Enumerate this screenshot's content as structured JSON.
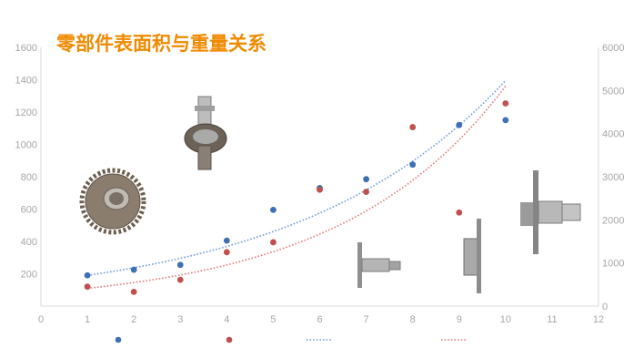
{
  "chart_data": {
    "type": "scatter",
    "title": "零部件表面积与重量关系",
    "x_ticks": [
      "0",
      "1",
      "2",
      "3",
      "4",
      "5",
      "6",
      "7",
      "8",
      "9",
      "10",
      "11",
      "12"
    ],
    "y_left_ticks": [
      "200",
      "400",
      "600",
      "800",
      "1000",
      "1200",
      "1400",
      "1600"
    ],
    "y_right_ticks": [
      "0",
      "1000",
      "2000",
      "3000",
      "4000",
      "5000",
      "6000"
    ],
    "xlim": [
      0,
      12
    ],
    "ylim_left": [
      0,
      1600
    ],
    "ylim_right": [
      0,
      6000
    ],
    "grid": false,
    "legend_position": "bottom",
    "series": [
      {
        "axis": "left",
        "color": "#3f6fb4",
        "marker": "circle",
        "points": [
          [
            1,
            190
          ],
          [
            2,
            225
          ],
          [
            3,
            255
          ],
          [
            4,
            405
          ],
          [
            5,
            595
          ],
          [
            6,
            730
          ],
          [
            7,
            785
          ],
          [
            8,
            875
          ],
          [
            9,
            1120
          ],
          [
            10,
            1150
          ]
        ]
      },
      {
        "axis": "right",
        "color": "#c0504d",
        "marker": "circle",
        "points": [
          [
            1,
            450
          ],
          [
            2,
            330
          ],
          [
            3,
            610
          ],
          [
            4,
            1250
          ],
          [
            5,
            1480
          ],
          [
            6,
            2700
          ],
          [
            7,
            2650
          ],
          [
            8,
            4150
          ],
          [
            9,
            2170
          ],
          [
            10,
            4700
          ]
        ]
      }
    ],
    "trendlines": [
      {
        "axis": "left",
        "type": "exponential",
        "color": "#6f9bd8",
        "start": [
          1,
          190
        ],
        "end": [
          10,
          1395
        ]
      },
      {
        "axis": "left",
        "type": "exponential",
        "color": "#e07b7b",
        "start": [
          1,
          110
        ],
        "end": [
          10,
          1360
        ]
      }
    ],
    "legend": [
      {
        "kind": "marker",
        "color": "#3f6fb4"
      },
      {
        "kind": "marker",
        "color": "#c0504d"
      },
      {
        "kind": "dotted-line",
        "color": "#6f9bd8"
      },
      {
        "kind": "dotted-line",
        "color": "#e07b7b"
      }
    ]
  },
  "colors": {
    "title": "#f08a00",
    "axis": "#d9d9d9",
    "tick_text": "#a6a6a6"
  },
  "icons": [
    "helical-gear-shaft-icon",
    "spur-gear-icon",
    "flanged-shaft-icon",
    "disc-flange-icon",
    "large-flanged-shaft-icon"
  ]
}
